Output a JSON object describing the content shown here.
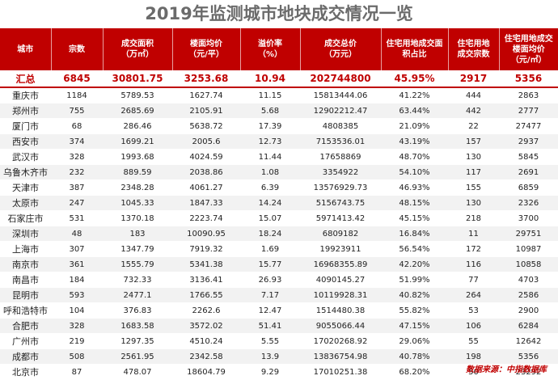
{
  "title": "2019年监测城市地块成交情况一览",
  "headers": [
    "城市",
    "宗数",
    "成交面积\n（万㎡）",
    "楼面均价\n（元/平）",
    "溢价率\n（%）",
    "成交总价\n（万元）",
    "住宅用地成交面\n积占比",
    "住宅用地\n成交宗数",
    "住宅用地成交\n楼面均价\n（元/㎡）"
  ],
  "summary": [
    "汇总",
    "6845",
    "30801.75",
    "3253.68",
    "10.94",
    "202744800",
    "45.95%",
    "2917",
    "5356"
  ],
  "rows": [
    [
      "重庆市",
      "1184",
      "5789.53",
      "1627.74",
      "11.15",
      "15813444.06",
      "41.22%",
      "444",
      "2863"
    ],
    [
      "郑州市",
      "755",
      "2685.69",
      "2105.91",
      "5.68",
      "12902212.47",
      "63.44%",
      "442",
      "2777"
    ],
    [
      "厦门市",
      "68",
      "286.46",
      "5638.72",
      "17.39",
      "4808385",
      "21.09%",
      "22",
      "27477"
    ],
    [
      "西安市",
      "374",
      "1699.21",
      "2005.6",
      "12.73",
      "7153536.01",
      "43.19%",
      "157",
      "2937"
    ],
    [
      "武汉市",
      "328",
      "1993.68",
      "4024.59",
      "11.44",
      "17658869",
      "48.70%",
      "130",
      "5845"
    ],
    [
      "乌鲁木齐市",
      "232",
      "889.59",
      "2038.86",
      "1.08",
      "3354922",
      "54.10%",
      "117",
      "2691"
    ],
    [
      "天津市",
      "387",
      "2348.28",
      "4061.27",
      "6.39",
      "13576929.73",
      "46.93%",
      "155",
      "6859"
    ],
    [
      "太原市",
      "247",
      "1045.33",
      "1847.33",
      "14.24",
      "5156743.75",
      "48.15%",
      "130",
      "2326"
    ],
    [
      "石家庄市",
      "531",
      "1370.18",
      "2223.74",
      "15.07",
      "5971413.42",
      "45.15%",
      "218",
      "3700"
    ],
    [
      "深圳市",
      "48",
      "183",
      "10090.95",
      "18.24",
      "6809182",
      "16.84%",
      "11",
      "29751"
    ],
    [
      "上海市",
      "307",
      "1347.79",
      "7919.32",
      "1.69",
      "19923911",
      "56.54%",
      "172",
      "10987"
    ],
    [
      "南京市",
      "361",
      "1555.79",
      "5341.38",
      "15.77",
      "16968355.89",
      "42.20%",
      "116",
      "10858"
    ],
    [
      "南昌市",
      "184",
      "732.33",
      "3136.41",
      "26.93",
      "4090145.27",
      "51.99%",
      "77",
      "4703"
    ],
    [
      "昆明市",
      "593",
      "2477.1",
      "1766.55",
      "7.17",
      "10119928.31",
      "40.82%",
      "264",
      "2586"
    ],
    [
      "呼和浩特市",
      "104",
      "376.83",
      "2262.6",
      "12.47",
      "1514480.38",
      "55.82%",
      "53",
      "2900"
    ],
    [
      "合肥市",
      "328",
      "1683.58",
      "3572.02",
      "51.41",
      "9055066.44",
      "47.15%",
      "106",
      "6284"
    ],
    [
      "广州市",
      "219",
      "1297.35",
      "4510.24",
      "5.55",
      "17020268.92",
      "29.06%",
      "55",
      "12642"
    ],
    [
      "成都市",
      "508",
      "2561.95",
      "2342.58",
      "13.9",
      "13836754.98",
      "40.78%",
      "198",
      "5356"
    ],
    [
      "北京市",
      "87",
      "478.07",
      "18604.79",
      "9.29",
      "17010251.38",
      "68.20%",
      "50",
      "23292"
    ]
  ],
  "source": "数据来源：中指数据库"
}
